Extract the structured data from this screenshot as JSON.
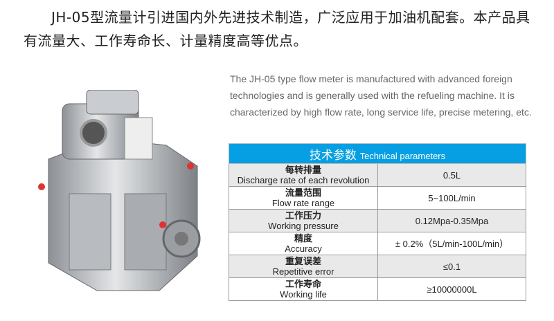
{
  "intro_cn": "JH-05型流量计引进国内外先进技术制造，广泛应用于加油机配套。本产品具有流量大、工作寿命长、计量精度高等优点。",
  "intro_en": "The JH-05 type flow meter is manufactured with advanced foreign technologies and is generally used with the refueling machine. It is characterized by high flow rate, long service life, precise metering, etc.",
  "table": {
    "header_cn": "技术参数",
    "header_en": "Technical parameters",
    "header_color": "#069fe3",
    "rows": [
      {
        "cn": "每转排量",
        "en": "Discharge rate of each revolution",
        "value": "0.5L"
      },
      {
        "cn": "流量范围",
        "en": "Flow rate range",
        "value": "5~100L/min"
      },
      {
        "cn": "工作压力",
        "en": "Working pressure",
        "value": "0.12Mpa-0.35Mpa"
      },
      {
        "cn": "精度",
        "en": "Accuracy",
        "value": "± 0.2%（5L/min-100L/min）"
      },
      {
        "cn": "重复误差",
        "en": "Repetitive error",
        "value": "≤0.1"
      },
      {
        "cn": "工作寿命",
        "en": "Working life",
        "value": "≥10000000L"
      }
    ]
  }
}
